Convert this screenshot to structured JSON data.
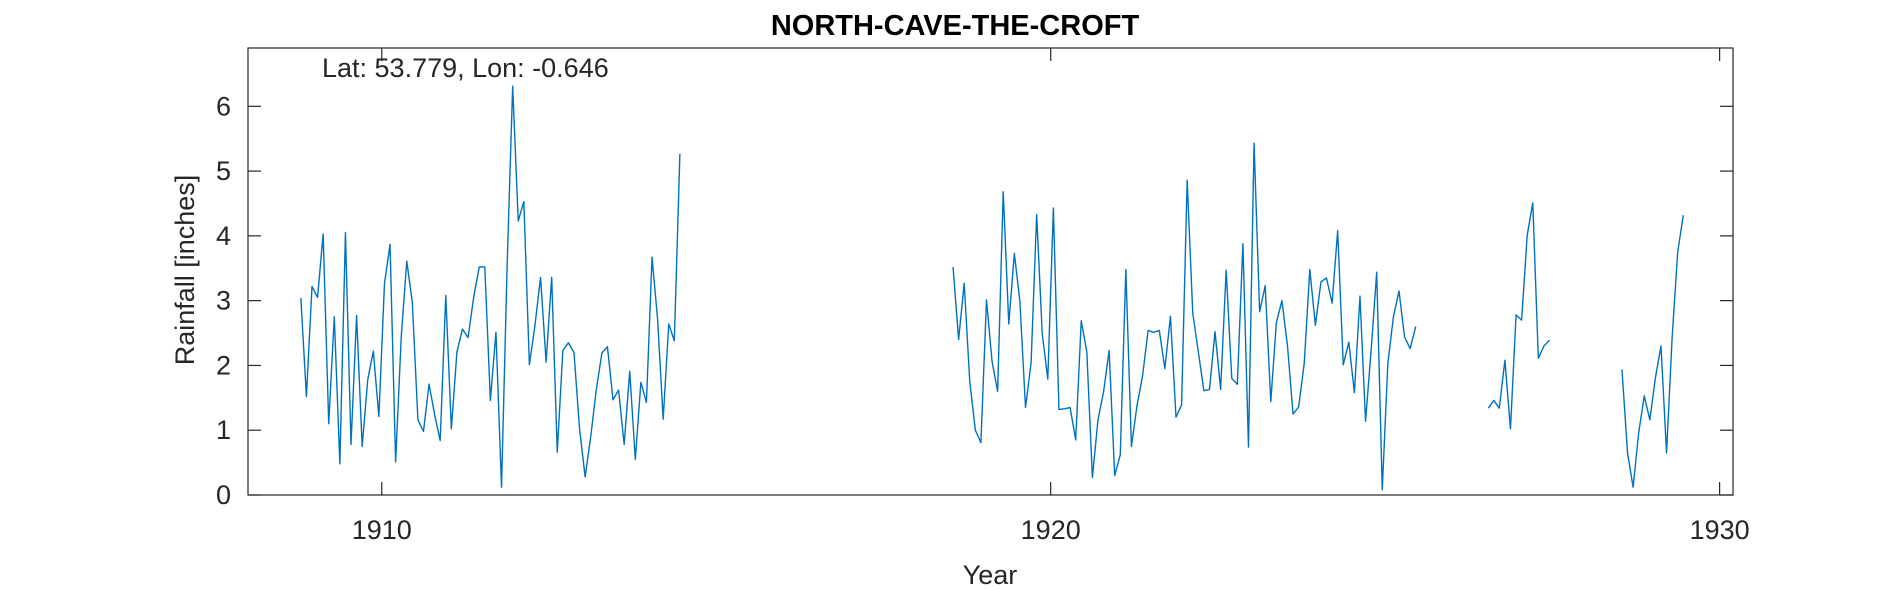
{
  "chart_data": {
    "type": "line",
    "title": "NORTH-CAVE-THE-CROFT",
    "annotation": "Lat: 53.779, Lon: -0.646",
    "xlabel": "Year",
    "ylabel": "Rainfall [inches]",
    "xlim": [
      1908,
      1930.2
    ],
    "ylim": [
      0,
      6.9
    ],
    "xticks": [
      1910,
      1920,
      1930
    ],
    "xtick_labels": [
      "1910",
      "1920",
      "1930"
    ],
    "yticks": [
      0,
      1,
      2,
      3,
      4,
      5,
      6
    ],
    "ytick_labels": [
      "0",
      "1",
      "2",
      "3",
      "4",
      "5",
      "6"
    ],
    "grid": false,
    "line_color": "#0072BD",
    "segments": [
      {
        "x_start": 1908.79,
        "values": [
          3.04,
          1.52,
          3.22,
          3.05,
          4.03,
          1.1,
          2.75,
          0.48,
          4.05,
          0.78,
          2.77,
          0.75,
          1.78,
          2.22,
          1.21,
          3.26,
          3.87,
          0.51,
          2.42,
          3.61,
          2.97,
          1.16,
          0.98,
          1.71,
          1.24,
          0.84,
          3.08,
          1.02,
          2.21,
          2.56,
          2.43,
          3.05,
          3.52,
          3.52,
          1.46,
          2.51,
          0.12,
          3.52,
          6.31,
          4.23,
          4.53,
          2.01,
          2.62,
          3.36,
          2.05,
          3.36,
          0.66,
          2.23,
          2.35,
          2.2,
          1.02,
          0.28,
          0.9,
          1.62,
          2.19,
          2.29,
          1.47,
          1.62,
          0.78,
          1.91,
          0.55,
          1.74,
          1.43,
          3.67,
          2.71,
          1.17,
          2.64,
          2.38,
          5.27
        ]
      },
      {
        "x_start": 1918.54,
        "values": [
          3.52,
          2.4,
          3.27,
          1.75,
          1.0,
          0.81,
          3.01,
          2.06,
          1.6,
          4.68,
          2.64,
          3.73,
          2.98,
          1.35,
          2.04,
          4.33,
          2.49,
          1.79,
          4.43,
          1.32,
          1.33,
          1.35,
          0.85,
          2.69,
          2.21,
          0.27,
          1.16,
          1.59,
          2.23,
          0.3,
          0.62,
          3.48,
          0.75,
          1.38,
          1.84,
          2.54,
          2.51,
          2.54,
          1.95,
          2.76,
          1.2,
          1.39,
          4.86,
          2.81,
          2.21,
          1.61,
          1.63,
          2.52,
          1.63,
          3.47,
          1.8,
          1.71,
          3.88,
          0.74,
          5.43,
          2.83,
          3.23,
          1.44,
          2.66,
          3.0,
          2.3,
          1.25,
          1.36,
          2.03,
          3.48,
          2.62,
          3.29,
          3.35,
          2.96,
          4.08,
          2.01,
          2.36,
          1.58,
          3.07,
          1.14,
          2.23,
          3.44,
          0.08,
          2.03,
          2.75,
          3.15,
          2.44,
          2.26,
          2.6
        ]
      },
      {
        "x_start": 1926.54,
        "values": [
          1.34,
          1.46,
          1.34,
          2.08,
          1.02,
          2.78,
          2.7,
          4.01,
          4.51,
          2.11,
          2.3,
          2.39
        ]
      },
      {
        "x_start": 1928.54,
        "values": [
          1.94,
          0.65,
          0.12,
          0.96,
          1.53,
          1.16,
          1.81,
          2.3,
          0.65,
          2.43,
          3.75,
          4.32
        ]
      }
    ]
  }
}
